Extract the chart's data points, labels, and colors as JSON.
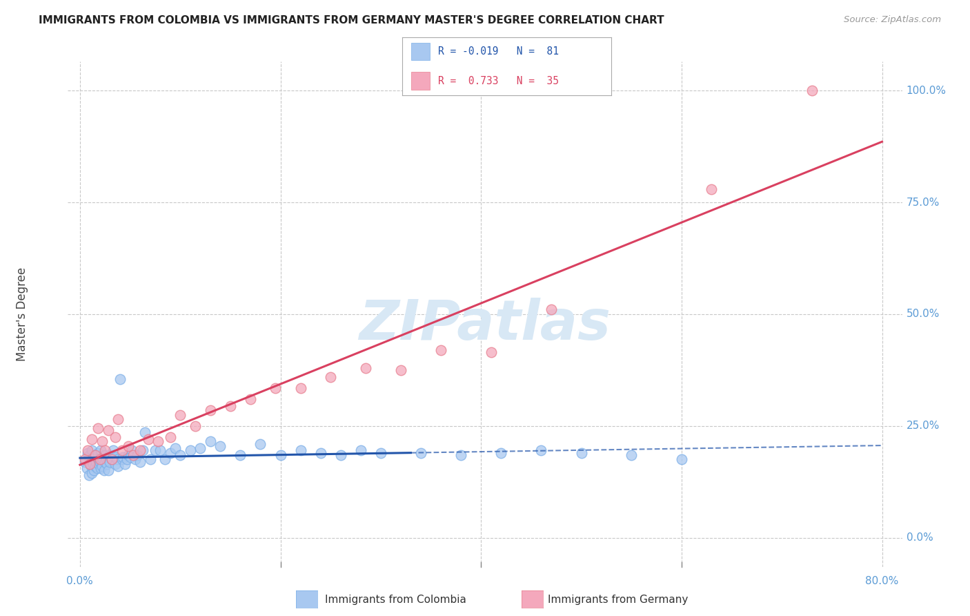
{
  "title": "IMMIGRANTS FROM COLOMBIA VS IMMIGRANTS FROM GERMANY MASTER'S DEGREE CORRELATION CHART",
  "source": "Source: ZipAtlas.com",
  "ylabel": "Master's Degree",
  "xlim": [
    0.0,
    0.8
  ],
  "ylim": [
    0.0,
    1.0
  ],
  "colombia_R": -0.019,
  "colombia_N": 81,
  "germany_R": 0.733,
  "germany_N": 35,
  "colombia_color": "#A8C8F0",
  "colombia_edge_color": "#7EB0E8",
  "colombia_line_color": "#2255AA",
  "germany_color": "#F4A8BC",
  "germany_edge_color": "#E88090",
  "germany_line_color": "#D94060",
  "watermark_color": "#D8E8F5",
  "background_color": "#ffffff",
  "grid_color": "#C8C8C8",
  "right_label_color": "#5B9BD5",
  "title_color": "#222222",
  "source_color": "#999999",
  "ytick_values": [
    0.0,
    0.25,
    0.5,
    0.75,
    1.0
  ],
  "xtick_values": [
    0.0,
    0.2,
    0.4,
    0.6,
    0.8
  ],
  "colombia_pts_x": [
    0.005,
    0.007,
    0.008,
    0.009,
    0.01,
    0.01,
    0.011,
    0.012,
    0.012,
    0.013,
    0.013,
    0.014,
    0.015,
    0.015,
    0.016,
    0.016,
    0.017,
    0.018,
    0.018,
    0.019,
    0.02,
    0.02,
    0.021,
    0.021,
    0.022,
    0.022,
    0.023,
    0.024,
    0.025,
    0.025,
    0.026,
    0.027,
    0.028,
    0.028,
    0.03,
    0.03,
    0.032,
    0.033,
    0.035,
    0.035,
    0.037,
    0.038,
    0.04,
    0.042,
    0.043,
    0.045,
    0.047,
    0.048,
    0.05,
    0.052,
    0.055,
    0.057,
    0.06,
    0.063,
    0.065,
    0.07,
    0.075,
    0.08,
    0.085,
    0.09,
    0.095,
    0.1,
    0.11,
    0.12,
    0.13,
    0.14,
    0.16,
    0.18,
    0.2,
    0.22,
    0.24,
    0.26,
    0.28,
    0.3,
    0.34,
    0.38,
    0.42,
    0.46,
    0.5,
    0.55,
    0.6
  ],
  "colombia_pts_y": [
    0.17,
    0.155,
    0.19,
    0.14,
    0.175,
    0.185,
    0.16,
    0.145,
    0.195,
    0.165,
    0.18,
    0.15,
    0.175,
    0.16,
    0.185,
    0.17,
    0.155,
    0.175,
    0.19,
    0.165,
    0.17,
    0.18,
    0.155,
    0.195,
    0.17,
    0.16,
    0.175,
    0.15,
    0.185,
    0.17,
    0.175,
    0.165,
    0.18,
    0.15,
    0.185,
    0.17,
    0.175,
    0.195,
    0.165,
    0.18,
    0.175,
    0.16,
    0.355,
    0.175,
    0.18,
    0.165,
    0.175,
    0.185,
    0.18,
    0.195,
    0.175,
    0.185,
    0.17,
    0.195,
    0.235,
    0.175,
    0.195,
    0.195,
    0.175,
    0.19,
    0.2,
    0.185,
    0.195,
    0.2,
    0.215,
    0.205,
    0.185,
    0.21,
    0.185,
    0.195,
    0.19,
    0.185,
    0.195,
    0.19,
    0.19,
    0.185,
    0.19,
    0.195,
    0.19,
    0.185,
    0.175
  ],
  "germany_pts_x": [
    0.005,
    0.008,
    0.01,
    0.012,
    0.015,
    0.018,
    0.02,
    0.022,
    0.025,
    0.028,
    0.032,
    0.035,
    0.038,
    0.042,
    0.048,
    0.053,
    0.06,
    0.068,
    0.078,
    0.09,
    0.1,
    0.115,
    0.13,
    0.15,
    0.17,
    0.195,
    0.22,
    0.25,
    0.285,
    0.32,
    0.36,
    0.41,
    0.47,
    0.63,
    0.73
  ],
  "germany_pts_y": [
    0.175,
    0.195,
    0.165,
    0.22,
    0.185,
    0.245,
    0.175,
    0.215,
    0.195,
    0.24,
    0.175,
    0.225,
    0.265,
    0.195,
    0.205,
    0.185,
    0.195,
    0.22,
    0.215,
    0.225,
    0.275,
    0.25,
    0.285,
    0.295,
    0.31,
    0.335,
    0.335,
    0.36,
    0.38,
    0.375,
    0.42,
    0.415,
    0.51,
    0.78,
    1.0
  ],
  "legend_R1_text": "R = -0.019   N =  81",
  "legend_R2_text": "R =  0.733   N =  35",
  "bottom_label1": "Immigrants from Colombia",
  "bottom_label2": "Immigrants from Germany"
}
